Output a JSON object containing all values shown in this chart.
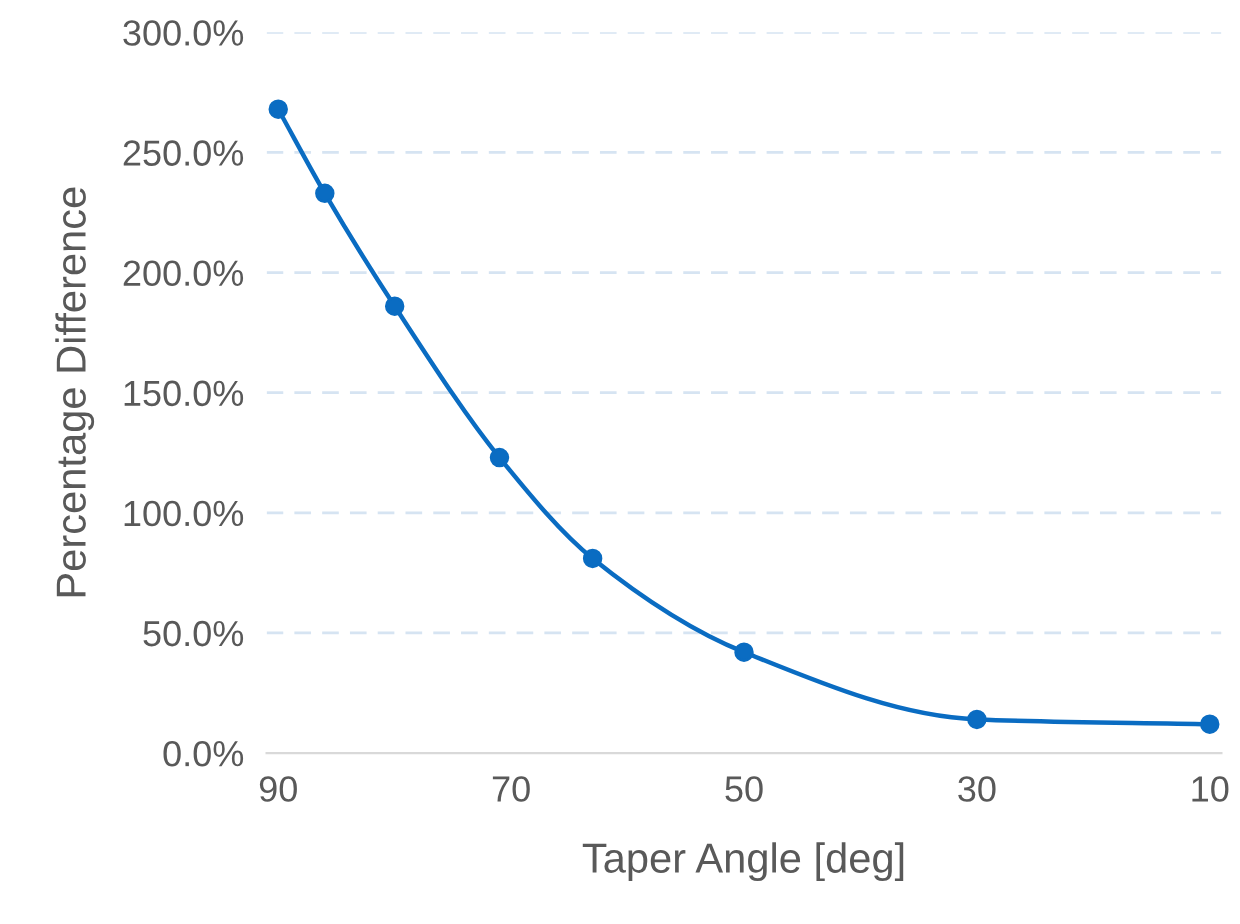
{
  "chart_data": {
    "type": "line",
    "xlabel": "Taper Angle [deg]",
    "ylabel": "Percentage Difference",
    "x": [
      90,
      86,
      80,
      71,
      63,
      50,
      30,
      10
    ],
    "series": [
      {
        "color": "#0a6cc2",
        "values": [
          268,
          233,
          186,
          123,
          81,
          42,
          14,
          12
        ]
      }
    ],
    "xlim": [
      91,
      9
    ],
    "xticks": [
      90,
      70,
      50,
      30,
      10
    ],
    "ylim": [
      0,
      300
    ],
    "yticks": [
      {
        "value": 0,
        "label": "0.0%"
      },
      {
        "value": 50,
        "label": "50.0%"
      },
      {
        "value": 100,
        "label": "100.0%"
      },
      {
        "value": 150,
        "label": "150.0%"
      },
      {
        "value": 200,
        "label": "200.0%"
      },
      {
        "value": 250,
        "label": "250.0%"
      },
      {
        "value": 300,
        "label": "300.0%"
      }
    ],
    "grid": "y",
    "marker": "circle",
    "line_style": "solid"
  }
}
